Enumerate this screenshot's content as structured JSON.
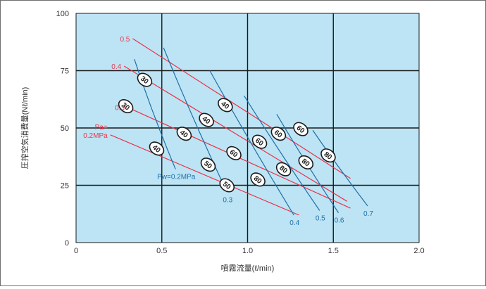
{
  "chart_data": {
    "type": "line",
    "xlabel": "噴霧流量(ℓ/min)",
    "ylabel": "圧搾空気消費量(Nℓ/min)",
    "xlim": [
      0,
      2.0
    ],
    "ylim": [
      0,
      100
    ],
    "x_ticks": [
      "0",
      "0.5",
      "1.0",
      "1.5",
      "2.0"
    ],
    "y_ticks": [
      "0",
      "25",
      "50",
      "75",
      "100"
    ],
    "grid": true,
    "colors": {
      "plot_bg": "#bde4f4",
      "pa_line": "#e8344a",
      "pw_line": "#1f6fa8",
      "grid": "#1a1a1a"
    },
    "pa_series": [
      {
        "label": "0.5",
        "x": [
          0.33,
          1.6
        ],
        "y": [
          89,
          28
        ]
      },
      {
        "label": "0.4",
        "x": [
          0.28,
          1.58
        ],
        "y": [
          77,
          18
        ]
      },
      {
        "label": "0.3",
        "x": [
          0.3,
          1.6
        ],
        "y": [
          59,
          15
        ]
      },
      {
        "label_lines": [
          "Pa=",
          "0.2MPa"
        ],
        "x": [
          0.2,
          1.3
        ],
        "y": [
          47,
          12
        ]
      }
    ],
    "pw_series": [
      {
        "label": "Pw=0.2MPa",
        "x": [
          0.34,
          0.58
        ],
        "y": [
          80,
          32
        ]
      },
      {
        "label": "0.3",
        "x": [
          0.51,
          0.88
        ],
        "y": [
          85,
          22
        ]
      },
      {
        "label": "0.4",
        "x": [
          0.78,
          1.27
        ],
        "y": [
          75,
          12
        ]
      },
      {
        "label": "0.5",
        "x": [
          0.98,
          1.42
        ],
        "y": [
          64,
          14
        ]
      },
      {
        "label": "0.6",
        "x": [
          1.17,
          1.53
        ],
        "y": [
          56,
          13
        ]
      },
      {
        "label": "0.7",
        "x": [
          1.38,
          1.7
        ],
        "y": [
          49,
          16
        ]
      }
    ],
    "markers": [
      {
        "label": "30",
        "x": 0.4,
        "y": 71
      },
      {
        "label": "30",
        "x": 0.29,
        "y": 59.5
      },
      {
        "label": "40",
        "x": 0.47,
        "y": 41
      },
      {
        "label": "40",
        "x": 0.63,
        "y": 47.5
      },
      {
        "label": "40",
        "x": 0.76,
        "y": 53.5
      },
      {
        "label": "40",
        "x": 0.87,
        "y": 60
      },
      {
        "label": "50",
        "x": 0.77,
        "y": 34
      },
      {
        "label": "50",
        "x": 0.88,
        "y": 25
      },
      {
        "label": "60",
        "x": 0.92,
        "y": 39
      },
      {
        "label": "60",
        "x": 1.07,
        "y": 44
      },
      {
        "label": "60",
        "x": 1.18,
        "y": 47.5
      },
      {
        "label": "60",
        "x": 1.31,
        "y": 49.5
      },
      {
        "label": "80",
        "x": 1.06,
        "y": 27.5
      },
      {
        "label": "80",
        "x": 1.21,
        "y": 32
      },
      {
        "label": "80",
        "x": 1.34,
        "y": 35
      },
      {
        "label": "80",
        "x": 1.47,
        "y": 38
      }
    ]
  }
}
